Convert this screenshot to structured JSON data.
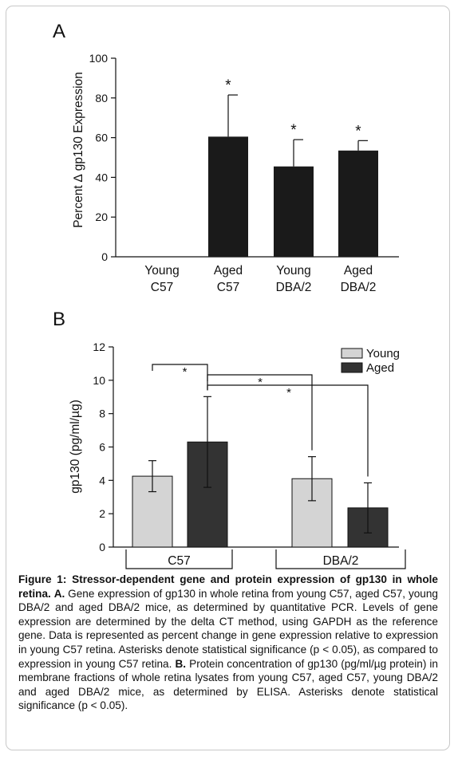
{
  "chart_data": [
    {
      "type": "bar",
      "panel_label": "A",
      "ylabel": "Percent ∆ gp130 Expression",
      "ylim": [
        0,
        100
      ],
      "yticks": [
        0,
        20,
        40,
        60,
        80,
        100
      ],
      "categories": [
        [
          "Young",
          "C57"
        ],
        [
          "Aged",
          "C57"
        ],
        [
          "Young",
          "DBA/2"
        ],
        [
          "Aged",
          "DBA/2"
        ]
      ],
      "values": [
        0,
        60.5,
        45.5,
        53.5
      ],
      "error_upper": [
        0,
        81.5,
        59,
        58.5
      ],
      "significance": [
        "",
        "*",
        "*",
        "*"
      ],
      "bar_color": "#1a1a1a"
    },
    {
      "type": "bar",
      "panel_label": "B",
      "ylabel": "gp130 (pg/ml/µg)",
      "ylim": [
        0,
        12
      ],
      "yticks": [
        0,
        2,
        4,
        6,
        8,
        10,
        12
      ],
      "groups": [
        "C57",
        "DBA/2"
      ],
      "series": [
        {
          "name": "Young",
          "color": "#d4d4d4",
          "values": [
            4.25,
            4.1
          ],
          "error": [
            0.93,
            1.32
          ]
        },
        {
          "name": "Aged",
          "color": "#333333",
          "values": [
            6.3,
            2.35
          ],
          "error": [
            2.72,
            1.5
          ]
        }
      ],
      "significance_brackets": [
        {
          "from": "Young C57",
          "to": "Aged C57",
          "label": "*"
        },
        {
          "from": "Aged C57",
          "to": "Young DBA/2",
          "label": "*"
        },
        {
          "from": "Aged C57",
          "to": "Aged DBA/2",
          "label": "*"
        }
      ],
      "legend_position": "top-right"
    }
  ],
  "caption": {
    "figure_label": "Figure 1:",
    "title": "Stressor-dependent gene and protein expression of gp130 in whole retina.",
    "a_label": "A.",
    "a_text": "Gene expression of gp130 in whole retina from young C57, aged C57, young DBA/2 and aged DBA/2 mice, as determined by quantitative PCR. Levels of gene expression are determined by the delta CT method, using GAPDH as the reference gene. Data is represented as percent change in gene expression relative to expression in young C57 retina. Asterisks denote statistical significance (p < 0.05), as compared to expression in young C57 retina.",
    "b_label": "B.",
    "b_text": "Protein concentration of gp130 (pg/ml/µg protein) in membrane fractions of whole retina lysates from young C57, aged C57, young DBA/2 and aged DBA/2 mice, as determined by ELISA. Asterisks denote statistical significance (p < 0.05)."
  }
}
